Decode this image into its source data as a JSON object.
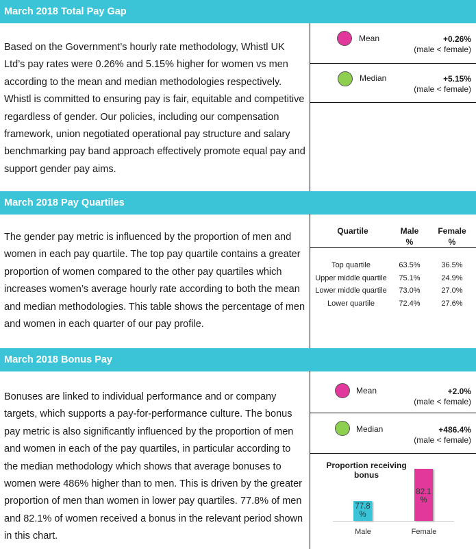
{
  "sections": [
    {
      "title": "March 2018 Total Pay Gap",
      "body": "Based on the Government’s hourly rate methodology, Whistl UK Ltd’s pay rates were 0.26% and 5.15% higher for women vs men according to the mean and median methodologies respectively. Whistl is committed to ensuring pay is fair, equitable and competitive regardless of gender. Our policies, including our compensation framework, union negotiated operational pay structure and salary benchmarking pay band approach effectively promote equal pay and support gender pay aims.",
      "mean": {
        "label": "Mean",
        "value": "+0.26%",
        "note": "(male < female)"
      },
      "median": {
        "label": "Median",
        "value": "+5.15%",
        "note": "(male < female)"
      }
    },
    {
      "title": "March 2018 Pay Quartiles",
      "body": "The gender pay metric is influenced by the proportion of men and women in each pay quartile. The top pay quartile contains a greater proportion of women compared to the other pay quartiles which increases women’s average hourly rate according to both the mean and median methodologies. This table shows the percentage of men and women in each quarter of our pay profile.",
      "table": {
        "headers": [
          "Quartile",
          "Male\n%",
          "Female\n%"
        ],
        "rows": [
          [
            "Top quartile",
            "63.5%",
            "36.5%"
          ],
          [
            "Upper middle quartile",
            "75.1%",
            "24.9%"
          ],
          [
            "Lower middle quartile",
            "73.0%",
            "27.0%"
          ],
          [
            "Lower quartile",
            "72.4%",
            "27.6%"
          ]
        ]
      }
    },
    {
      "title": "March 2018 Bonus Pay",
      "body": "Bonuses are linked to individual performance and or company targets, which supports a pay-for-performance culture. The bonus pay metric is also significantly influenced by the proportion of men and women in each of the pay quartiles, in particular according to the median methodology which shows that average bonuses to women were 486% higher than to men. This is driven by the greater proportion of men than women in lower pay quartiles. 77.8% of men and 82.1% of women received a bonus in the relevant period shown in this chart.",
      "mean": {
        "label": "Mean",
        "value": "+2.0%",
        "note": "(male < female)"
      },
      "median": {
        "label": "Median",
        "value": "+486.4%",
        "note": "(male < female)"
      }
    }
  ],
  "colors": {
    "header": "#3bc4d8",
    "mean": "#e0399b",
    "median": "#8fcf50",
    "male": "#3bc4d8",
    "female": "#e0399b"
  },
  "chart_data": {
    "type": "bar",
    "title": "Proportion receiving bonus",
    "categories": [
      "Male",
      "Female"
    ],
    "values": [
      77.8,
      82.1
    ],
    "labels": [
      "77.8\n%",
      "82.1\n%"
    ],
    "ylim": [
      75,
      83
    ],
    "xlabel": "",
    "ylabel": ""
  }
}
